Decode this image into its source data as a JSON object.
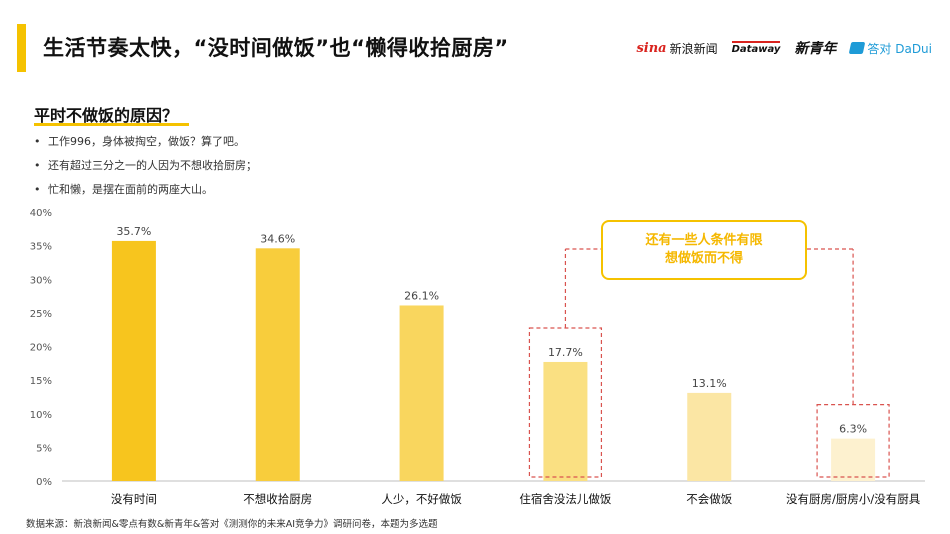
{
  "header": {
    "title": "生活节奏太快，“没时间做饭”也“懒得收拾厨房”",
    "logos": {
      "sina": "sina",
      "sina_text": "新浪新闻",
      "dataway": "Dataway",
      "xinqingnian": "新青年",
      "dadui_icon": "dadui-icon",
      "dadui": "答对 DaDui"
    }
  },
  "section": {
    "title": "平时不做饭的原因？",
    "bullets": [
      "工作996，身体被掏空，做饭？算了吧。",
      "还有超过三分之一的人因为不想收拾厨房；",
      "忙和懒，是摆在面前的两座大山。"
    ]
  },
  "callout": {
    "line1": "还有一些人条件有限",
    "line2": "想做饭而不得"
  },
  "footer": {
    "source": "数据来源：新浪新闻&零点有数&新青年&答对《测测你的未来AI竞争力》调研问卷，本题为多选题"
  },
  "colors": {
    "accent": "#f5c200",
    "dashed_highlight": "#d9534f",
    "bar_colors": [
      "#f7c51e",
      "#f8cd3c",
      "#f9d65e",
      "#fae082",
      "#fbe6a4",
      "#fdf1cf"
    ]
  },
  "chart_data": {
    "type": "bar",
    "categories": [
      "没有时间",
      "不想收拾厨房",
      "人少，不好做饭",
      "住宿舍没法儿做饭",
      "不会做饭",
      "没有厨房/厨房小/没有厨具"
    ],
    "values": [
      35.7,
      34.6,
      26.1,
      17.7,
      13.1,
      6.3
    ],
    "data_labels": [
      "35.7%",
      "34.6%",
      "26.1%",
      "17.7%",
      "13.1%",
      "6.3%"
    ],
    "y_ticks": [
      "0%",
      "5%",
      "10%",
      "15%",
      "20%",
      "25%",
      "30%",
      "35%",
      "40%"
    ],
    "ylim": [
      0,
      40
    ],
    "grid": false,
    "highlighted_categories": [
      "住宿舍没法儿做饭",
      "没有厨房/厨房小/没有厨具"
    ]
  }
}
